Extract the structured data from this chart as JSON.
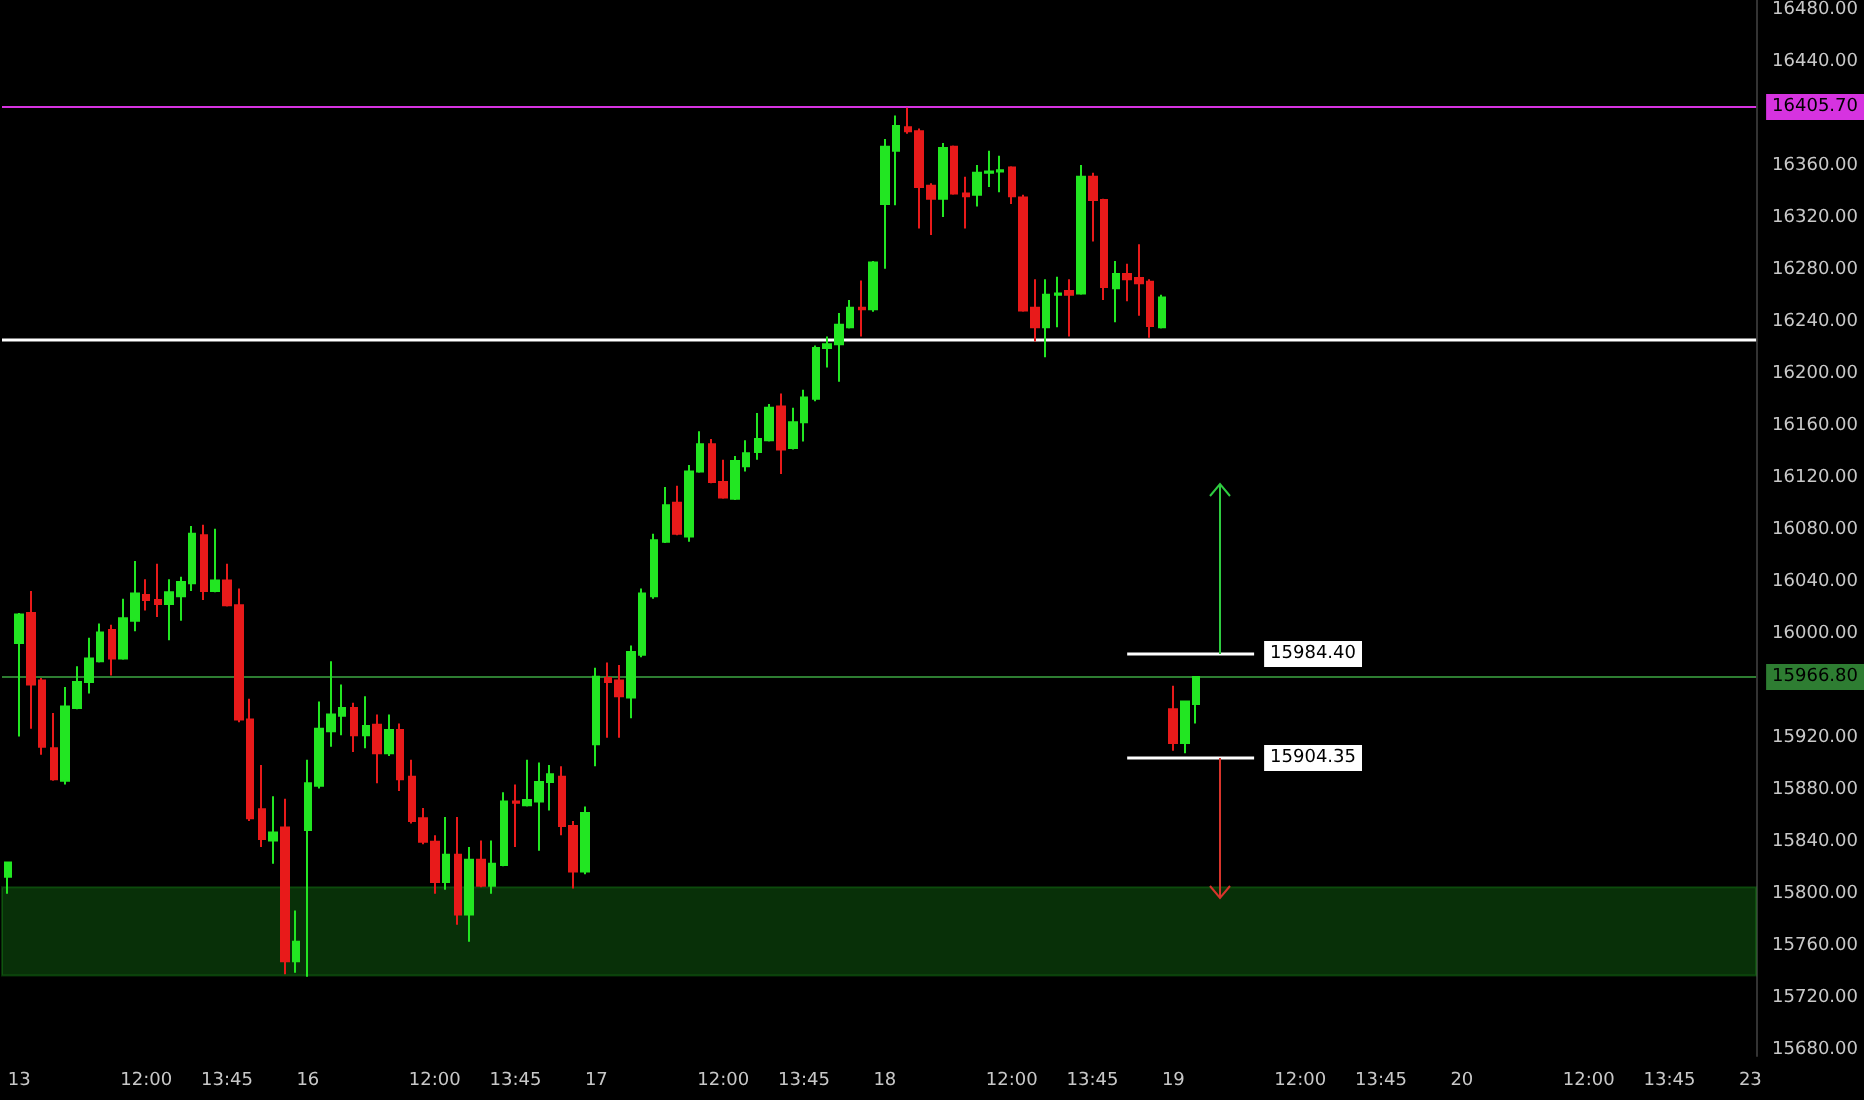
{
  "chart_data": {
    "type": "candlestick",
    "categories": [
      null,
      "13",
      null,
      null,
      null,
      null,
      null,
      null,
      null,
      null,
      null,
      null,
      "12:00",
      null,
      null,
      null,
      null,
      null,
      null,
      "13:45",
      null,
      null,
      null,
      null,
      null,
      null,
      "16",
      null,
      null,
      null,
      null,
      null,
      null,
      null,
      null,
      null,
      null,
      "12:00",
      null,
      null,
      null,
      null,
      null,
      null,
      "13:45",
      null,
      null,
      null,
      null,
      null,
      null,
      "17",
      null,
      null,
      null,
      null,
      null,
      null,
      null,
      null,
      null,
      null,
      "12:00",
      null,
      null,
      null,
      null,
      null,
      null,
      "13:45",
      null,
      null,
      null,
      null,
      null,
      null,
      "18",
      null,
      null,
      null,
      null,
      null,
      null,
      null,
      null,
      null,
      null,
      "12:00",
      null,
      null,
      null,
      null,
      null,
      null,
      "13:45",
      null,
      null,
      null,
      null,
      null,
      null,
      "19",
      null,
      null,
      null,
      null,
      null,
      null,
      null,
      null,
      null,
      null,
      "12:00",
      null,
      null,
      null,
      null,
      null,
      null,
      "13:45",
      null,
      null,
      null,
      null,
      null,
      null,
      "20",
      null,
      null,
      null,
      null,
      null,
      null,
      null,
      null,
      null,
      null,
      "12:00",
      null,
      null,
      null,
      null,
      null,
      null,
      "13:45",
      null,
      null,
      null,
      null,
      null,
      null,
      "23"
    ],
    "ohlc": [
      [
        15813,
        15824,
        15800,
        15824
      ],
      [
        15993,
        16016,
        15921,
        16015
      ],
      [
        16016,
        16033,
        15927,
        15961
      ],
      [
        15964,
        15966,
        15907,
        15913
      ],
      [
        15912,
        15939,
        15887,
        15888
      ],
      [
        15887,
        15959,
        15884,
        15944
      ],
      [
        15943,
        15975,
        15942,
        15963
      ],
      [
        15963,
        15997,
        15954,
        15981
      ],
      [
        15979,
        16008,
        15978,
        16001
      ],
      [
        16003,
        16007,
        15968,
        15981
      ],
      [
        15981,
        16027,
        15980,
        16012
      ],
      [
        16010,
        16056,
        16002,
        16031
      ],
      [
        16030,
        16042,
        16018,
        16026
      ],
      [
        16026,
        16054,
        16013,
        16023
      ],
      [
        16023,
        16042,
        15995,
        16032
      ],
      [
        16029,
        16044,
        16010,
        16040
      ],
      [
        16039,
        16083,
        16033,
        16077
      ],
      [
        16076,
        16084,
        16026,
        16033
      ],
      [
        16033,
        16081,
        16032,
        16041
      ],
      [
        16041,
        16054,
        16021,
        16022
      ],
      [
        16022,
        16035,
        15932,
        15934
      ],
      [
        15934,
        15950,
        15856,
        15858
      ],
      [
        15865,
        15899,
        15836,
        15842
      ],
      [
        15841,
        15875,
        15823,
        15847
      ],
      [
        15851,
        15873,
        15738,
        15748
      ],
      [
        15748,
        15787,
        15739,
        15763
      ],
      [
        15849,
        15903,
        15736,
        15885
      ],
      [
        15883,
        15948,
        15881,
        15927
      ],
      [
        15925,
        15979,
        15913,
        15938
      ],
      [
        15937,
        15961,
        15922,
        15943
      ],
      [
        15943,
        15947,
        15909,
        15922
      ],
      [
        15922,
        15952,
        15912,
        15929
      ],
      [
        15930,
        15938,
        15885,
        15908
      ],
      [
        15908,
        15938,
        15906,
        15926
      ],
      [
        15926,
        15931,
        15879,
        15888
      ],
      [
        15890,
        15903,
        15854,
        15856
      ],
      [
        15858,
        15866,
        15838,
        15840
      ],
      [
        15840,
        15845,
        15800,
        15809
      ],
      [
        15809,
        15859,
        15803,
        15830
      ],
      [
        15830,
        15859,
        15776,
        15784
      ],
      [
        15784,
        15836,
        15763,
        15826
      ],
      [
        15826,
        15841,
        15805,
        15806
      ],
      [
        15806,
        15841,
        15800,
        15823
      ],
      [
        15822,
        15878,
        15821,
        15871
      ],
      [
        15871,
        15884,
        15836,
        15870
      ],
      [
        15868,
        15903,
        15867,
        15872
      ],
      [
        15871,
        15901,
        15833,
        15886
      ],
      [
        15886,
        15899,
        15864,
        15892
      ],
      [
        15890,
        15898,
        15845,
        15852
      ],
      [
        15852,
        15856,
        15804,
        15817
      ],
      [
        15817,
        15867,
        15815,
        15862
      ],
      [
        15915,
        15974,
        15898,
        15967
      ],
      [
        15966,
        15978,
        15920,
        15963
      ],
      [
        15964,
        15976,
        15920,
        15952
      ],
      [
        15951,
        15991,
        15935,
        15986
      ],
      [
        15984,
        16035,
        15982,
        16031
      ],
      [
        16029,
        16077,
        16027,
        16072
      ],
      [
        16071,
        16113,
        16070,
        16099
      ],
      [
        16101,
        16114,
        16076,
        16077
      ],
      [
        16075,
        16130,
        16071,
        16125
      ],
      [
        16125,
        16156,
        16124,
        16146
      ],
      [
        16146,
        16150,
        16116,
        16117
      ],
      [
        16117,
        16134,
        16104,
        16105
      ],
      [
        16104,
        16137,
        16103,
        16133
      ],
      [
        16129,
        16149,
        16125,
        16139
      ],
      [
        16140,
        16170,
        16134,
        16150
      ],
      [
        16149,
        16177,
        16148,
        16174
      ],
      [
        16175,
        16185,
        16123,
        16142
      ],
      [
        16143,
        16174,
        16142,
        16163
      ],
      [
        16163,
        16188,
        16148,
        16182
      ],
      [
        16181,
        16222,
        16179,
        16220
      ],
      [
        16220,
        16229,
        16205,
        16223
      ],
      [
        16223,
        16247,
        16194,
        16238
      ],
      [
        16236,
        16257,
        16235,
        16251
      ],
      [
        16251,
        16272,
        16229,
        16250
      ],
      [
        16250,
        16287,
        16248,
        16286
      ],
      [
        16331,
        16381,
        16281,
        16375
      ],
      [
        16372,
        16399,
        16330,
        16391
      ],
      [
        16390,
        16405,
        16385,
        16387
      ],
      [
        16387,
        16389,
        16312,
        16344
      ],
      [
        16345,
        16347,
        16307,
        16335
      ],
      [
        16335,
        16378,
        16321,
        16374
      ],
      [
        16375,
        16376,
        16338,
        16339
      ],
      [
        16339,
        16352,
        16312,
        16337
      ],
      [
        16338,
        16361,
        16329,
        16355
      ],
      [
        16355,
        16372,
        16344,
        16356
      ],
      [
        16356,
        16368,
        16340,
        16357
      ],
      [
        16359,
        16360,
        16331,
        16337
      ],
      [
        16336,
        16338,
        16248,
        16249
      ],
      [
        16251,
        16273,
        16225,
        16236
      ],
      [
        16236,
        16273,
        16213,
        16261
      ],
      [
        16261,
        16275,
        16236,
        16262
      ],
      [
        16264,
        16273,
        16229,
        16261
      ],
      [
        16262,
        16361,
        16261,
        16352
      ],
      [
        16352,
        16355,
        16302,
        16334
      ],
      [
        16334,
        16335,
        16257,
        16267
      ],
      [
        16266,
        16287,
        16240,
        16277
      ],
      [
        16277,
        16285,
        16256,
        16273
      ],
      [
        16274,
        16300,
        16245,
        16270
      ],
      [
        16271,
        16273,
        16228,
        16237
      ],
      [
        16236,
        16261,
        16235,
        16259
      ],
      [
        15942,
        15960,
        15910,
        15916
      ],
      [
        15916,
        15948,
        15908,
        15948
      ],
      [
        15946,
        15967,
        15931,
        15966.8
      ],
      null,
      null,
      null,
      null,
      null,
      null,
      null,
      null,
      null,
      null,
      null,
      null,
      null,
      null,
      null,
      null,
      null,
      null,
      null,
      null,
      null,
      null,
      null,
      null,
      null,
      null,
      null,
      null,
      null,
      null,
      null,
      null,
      null,
      null,
      null,
      null,
      null,
      null,
      null,
      null,
      null,
      null,
      null,
      null,
      null,
      null,
      null,
      null
    ],
    "ylim": [
      15675,
      16488
    ],
    "yticks": [
      {
        "value": 15680,
        "label": "15680.00"
      },
      {
        "value": 15720,
        "label": "15720.00"
      },
      {
        "value": 15760,
        "label": "15760.00"
      },
      {
        "value": 15800,
        "label": "15800.00"
      },
      {
        "value": 15840,
        "label": "15840.00"
      },
      {
        "value": 15880,
        "label": "15880.00"
      },
      {
        "value": 15920,
        "label": "15920.00"
      },
      {
        "value": 16000,
        "label": "16000.00"
      },
      {
        "value": 16040,
        "label": "16040.00"
      },
      {
        "value": 16080,
        "label": "16080.00"
      },
      {
        "value": 16120,
        "label": "16120.00"
      },
      {
        "value": 16160,
        "label": "16160.00"
      },
      {
        "value": 16200,
        "label": "16200.00"
      },
      {
        "value": 16240,
        "label": "16240.00"
      },
      {
        "value": 16280,
        "label": "16280.00"
      },
      {
        "value": 16320,
        "label": "16320.00"
      },
      {
        "value": 16360,
        "label": "16360.00"
      },
      {
        "value": 16440,
        "label": "16440.00"
      },
      {
        "value": 16480,
        "label": "16480.00"
      }
    ],
    "ref_lines": [
      {
        "axis": "y",
        "value": 16405.7,
        "label": "16405.70",
        "color": "#d633e0"
      },
      {
        "axis": "y",
        "value": 16226,
        "color": "#ffffff"
      },
      {
        "axis": "y",
        "value": 15966.8,
        "label": "15966.80",
        "color": "#2e7d32"
      },
      {
        "axis": "y",
        "value": 15984.4,
        "label": "15984.40",
        "color": "#ffffff"
      },
      {
        "axis": "y",
        "value": 15904.35,
        "label": "15904.35",
        "color": "#ffffff"
      }
    ],
    "bands": [
      {
        "axis": "y",
        "from": 15737,
        "to": 15805,
        "color": "#1fbf1f"
      }
    ],
    "grid": false
  }
}
